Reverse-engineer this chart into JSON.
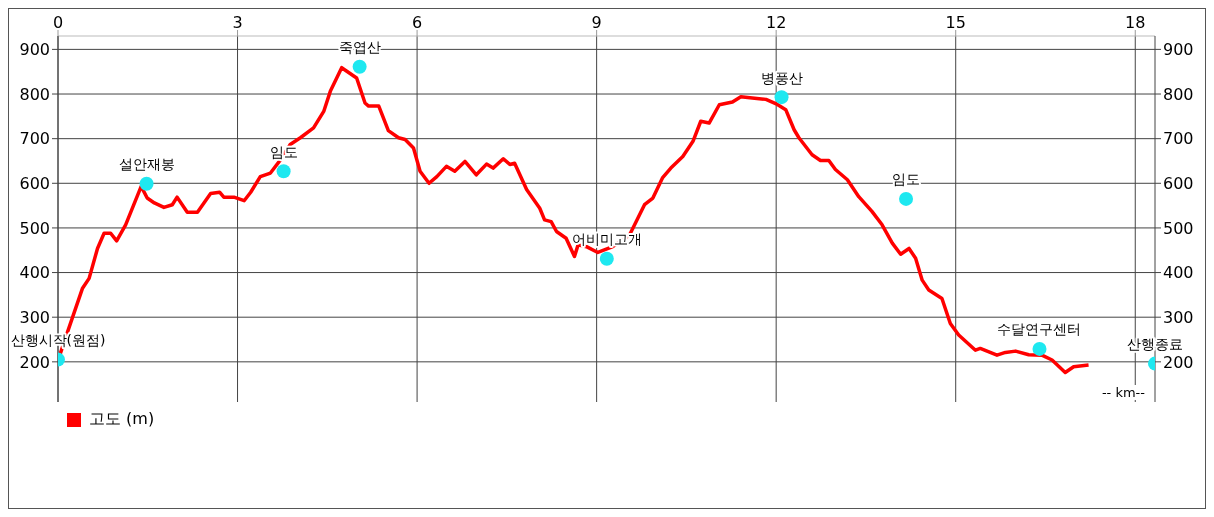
{
  "chart_data": {
    "type": "line",
    "xlabel": "-- km--",
    "xlim": [
      0,
      18.33
    ],
    "xticks": [
      0,
      3,
      6,
      9,
      12,
      15,
      18
    ],
    "ylim": [
      110,
      930
    ],
    "yticks": [
      200,
      300,
      400,
      500,
      600,
      700,
      800,
      900
    ],
    "y2lim": [
      110,
      930
    ],
    "y2ticks": [
      200,
      300,
      400,
      500,
      600,
      700,
      800,
      900
    ],
    "grid": true,
    "legend": "bottom left",
    "marker": "none",
    "line_style": "solid",
    "series": [
      {
        "name": "고도 (m)",
        "color": "#ff0000",
        "x": [
          0.03,
          0.16,
          0.41,
          0.52,
          0.66,
          0.77,
          0.88,
          0.98,
          1.13,
          1.39,
          1.49,
          1.61,
          1.77,
          1.91,
          1.99,
          2.16,
          2.33,
          2.55,
          2.7,
          2.77,
          2.94,
          3.11,
          3.22,
          3.38,
          3.55,
          3.72,
          3.88,
          4.05,
          4.27,
          4.44,
          4.55,
          4.74,
          4.99,
          5.13,
          5.19,
          5.36,
          5.52,
          5.69,
          5.8,
          5.94,
          6.05,
          6.2,
          6.33,
          6.49,
          6.63,
          6.8,
          6.99,
          7.16,
          7.27,
          7.44,
          7.55,
          7.63,
          7.83,
          8.05,
          8.13,
          8.24,
          8.33,
          8.49,
          8.63,
          8.69,
          8.83,
          9.02,
          9.27,
          9.55,
          9.8,
          9.94,
          10.1,
          10.24,
          10.44,
          10.61,
          10.74,
          10.88,
          11.05,
          11.27,
          11.41,
          11.6,
          11.83,
          12.0,
          12.16,
          12.3,
          12.38,
          12.6,
          12.74,
          12.88,
          12.99,
          13.19,
          13.38,
          13.6,
          13.77,
          13.94,
          14.08,
          14.22,
          14.33,
          14.44,
          14.55,
          14.77,
          14.91,
          15.05,
          15.33,
          15.41,
          15.69,
          15.83,
          16.0,
          16.22,
          16.44,
          16.61,
          16.83,
          16.97,
          17.22
        ],
        "values": [
          215,
          267,
          365,
          387,
          454,
          488,
          488,
          471,
          507,
          593,
          567,
          556,
          546,
          552,
          569,
          535,
          535,
          577,
          580,
          569,
          569,
          561,
          580,
          615,
          623,
          653,
          687,
          702,
          724,
          761,
          806,
          859,
          836,
          780,
          773,
          773,
          718,
          702,
          698,
          679,
          627,
          600,
          615,
          638,
          627,
          649,
          619,
          643,
          634,
          655,
          642,
          645,
          586,
          544,
          518,
          514,
          492,
          477,
          436,
          462,
          458,
          445,
          458,
          484,
          552,
          567,
          612,
          634,
          660,
          694,
          739,
          735,
          776,
          782,
          794,
          791,
          788,
          778,
          765,
          720,
          702,
          664,
          651,
          651,
          631,
          608,
          570,
          537,
          507,
          466,
          441,
          454,
          432,
          383,
          361,
          342,
          286,
          260,
          226,
          230,
          215,
          221,
          224,
          216,
          215,
          204,
          176,
          189,
          193
        ]
      },
      {
        "type": "scatter",
        "color": "#1ee8f0",
        "marker": "circle",
        "x": [
          0.0,
          1.48,
          3.77,
          5.04,
          9.17,
          12.09,
          14.17,
          16.4,
          18.33
        ],
        "values": [
          205,
          599,
          627,
          861,
          431,
          793,
          565,
          229,
          196
        ],
        "value_labels": [
          "산행시작(원점)",
          "설안재봉",
          "임도",
          "죽엽산",
          "어비미고개",
          "병풍산",
          "임도",
          "수달연구센터",
          "산행종료"
        ]
      }
    ]
  }
}
